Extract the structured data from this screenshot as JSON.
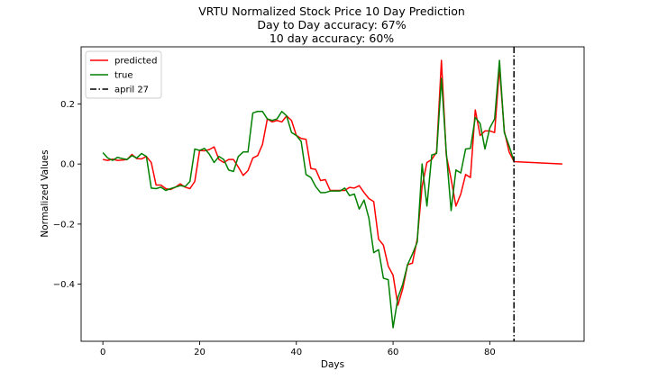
{
  "chart_data": {
    "type": "line",
    "title_lines": [
      "VRTU Normalized Stock Price 10 Day Prediction",
      "Day to Day accuracy: 67%",
      "10 day accuracy: 60%"
    ],
    "xlabel": "Days",
    "ylabel": "Normalized Values",
    "xlim": [
      -4.5,
      99.5
    ],
    "ylim": [
      -0.59,
      0.39
    ],
    "x_ticks": [
      0,
      20,
      40,
      60,
      80
    ],
    "y_ticks": [
      -0.4,
      -0.2,
      0.0,
      0.2
    ],
    "y_tick_labels": [
      "−0.4",
      "−0.2",
      "0.0",
      "0.2"
    ],
    "grid": false,
    "legend_position": "top-left",
    "series": [
      {
        "name": "predicted",
        "color": "#ff0000",
        "x": [
          0,
          1,
          2,
          3,
          4,
          5,
          6,
          7,
          8,
          9,
          10,
          11,
          12,
          13,
          14,
          15,
          16,
          17,
          18,
          19,
          20,
          21,
          22,
          23,
          24,
          25,
          26,
          27,
          28,
          29,
          30,
          31,
          32,
          33,
          34,
          35,
          36,
          37,
          38,
          39,
          40,
          41,
          42,
          43,
          44,
          45,
          46,
          47,
          48,
          49,
          50,
          51,
          52,
          53,
          54,
          55,
          56,
          57,
          58,
          59,
          60,
          61,
          62,
          63,
          64,
          65,
          66,
          67,
          68,
          69,
          70,
          71,
          72,
          73,
          74,
          75,
          76,
          77,
          78,
          79,
          80,
          81,
          82,
          83,
          84,
          85,
          95
        ],
        "y": [
          0.015,
          0.012,
          0.016,
          0.012,
          0.013,
          0.015,
          0.032,
          0.018,
          0.017,
          0.025,
          0.005,
          -0.07,
          -0.07,
          -0.082,
          -0.085,
          -0.077,
          -0.066,
          -0.077,
          -0.082,
          -0.058,
          0.045,
          0.044,
          0.048,
          0.057,
          0.015,
          0.005,
          0.015,
          0.015,
          -0.01,
          -0.038,
          -0.022,
          0.02,
          0.028,
          0.065,
          0.15,
          0.14,
          0.145,
          0.14,
          0.16,
          0.145,
          0.095,
          0.085,
          0.082,
          -0.015,
          -0.018,
          -0.055,
          -0.052,
          -0.088,
          -0.088,
          -0.088,
          -0.088,
          -0.078,
          -0.08,
          -0.072,
          -0.095,
          -0.115,
          -0.125,
          -0.25,
          -0.27,
          -0.34,
          -0.37,
          -0.47,
          -0.415,
          -0.335,
          -0.33,
          -0.25,
          -0.075,
          0.005,
          0.015,
          0.04,
          0.345,
          0.03,
          -0.05,
          -0.14,
          -0.1,
          -0.035,
          -0.045,
          0.18,
          0.095,
          0.11,
          0.11,
          0.105,
          0.32,
          0.11,
          0.04,
          0.008,
          0.0
        ]
      },
      {
        "name": "true",
        "color": "#008000",
        "x": [
          0,
          1,
          2,
          3,
          4,
          5,
          6,
          7,
          8,
          9,
          10,
          11,
          12,
          13,
          14,
          15,
          16,
          17,
          18,
          19,
          20,
          21,
          22,
          23,
          24,
          25,
          26,
          27,
          28,
          29,
          30,
          31,
          32,
          33,
          34,
          35,
          36,
          37,
          38,
          39,
          40,
          41,
          42,
          43,
          44,
          45,
          46,
          47,
          48,
          49,
          50,
          51,
          52,
          53,
          54,
          55,
          56,
          57,
          58,
          59,
          60,
          61,
          62,
          63,
          64,
          65,
          66,
          67,
          68,
          69,
          70,
          71,
          72,
          73,
          74,
          75,
          76,
          77,
          78,
          79,
          80,
          81,
          82,
          83,
          84,
          85
        ],
        "y": [
          0.038,
          0.02,
          0.012,
          0.022,
          0.018,
          0.015,
          0.028,
          0.02,
          0.035,
          0.025,
          -0.08,
          -0.082,
          -0.077,
          -0.088,
          -0.082,
          -0.077,
          -0.072,
          -0.075,
          -0.058,
          0.05,
          0.045,
          0.052,
          0.033,
          0.005,
          0.025,
          0.015,
          -0.02,
          -0.025,
          0.025,
          0.04,
          0.04,
          0.17,
          0.175,
          0.175,
          0.15,
          0.145,
          0.15,
          0.175,
          0.16,
          0.105,
          0.095,
          0.075,
          -0.035,
          -0.045,
          -0.075,
          -0.095,
          -0.095,
          -0.09,
          -0.09,
          -0.09,
          -0.08,
          -0.105,
          -0.1,
          -0.15,
          -0.12,
          -0.18,
          -0.295,
          -0.285,
          -0.38,
          -0.385,
          -0.545,
          -0.445,
          -0.4,
          -0.335,
          -0.3,
          -0.26,
          0.0,
          -0.14,
          0.03,
          0.035,
          0.285,
          0.04,
          -0.155,
          -0.02,
          -0.03,
          0.05,
          0.052,
          0.155,
          0.135,
          0.05,
          0.12,
          0.15,
          0.345,
          0.105,
          0.06,
          0.01
        ]
      }
    ],
    "marker": {
      "name": "april 27",
      "color": "#000000",
      "x": 85
    }
  }
}
